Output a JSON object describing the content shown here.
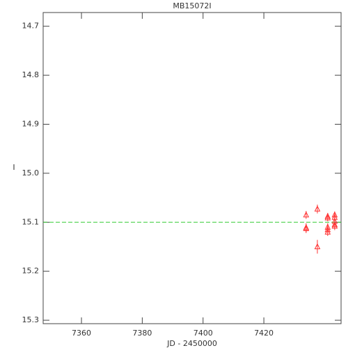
{
  "chart_data": {
    "type": "scatter",
    "title": "MB15072I",
    "x_label": "JD - 2450000",
    "y_label": "I",
    "x": [
      7433.9,
      7433.9,
      7433.9,
      7437.6,
      7437.6,
      7441.0,
      7441.0,
      7441.0,
      7441.0,
      7441.0,
      7443.3,
      7443.3,
      7443.3,
      7443.3,
      7443.3
    ],
    "values": [
      15.085,
      15.111,
      15.113,
      15.073,
      15.15,
      15.088,
      15.091,
      15.11,
      15.115,
      15.12,
      15.085,
      15.09,
      15.098,
      15.105,
      15.108
    ],
    "errors": [
      0.008,
      0.009,
      0.009,
      0.009,
      0.014,
      0.007,
      0.007,
      0.008,
      0.008,
      0.008,
      0.007,
      0.007,
      0.007,
      0.008,
      0.008
    ],
    "color": "#ff3333",
    "hline": {
      "value": 15.1,
      "color": "#33cc33"
    },
    "xlim": [
      7347.4,
      7445.4
    ],
    "xticks": [
      7360,
      7380,
      7400,
      7420
    ],
    "ylim": [
      15.307,
      14.672
    ],
    "y_inverted": true,
    "yticks": [
      14.7,
      14.8,
      14.9,
      {
        "value": 15,
        "label": "15.0"
      },
      15.1,
      15.2,
      15.3
    ]
  }
}
